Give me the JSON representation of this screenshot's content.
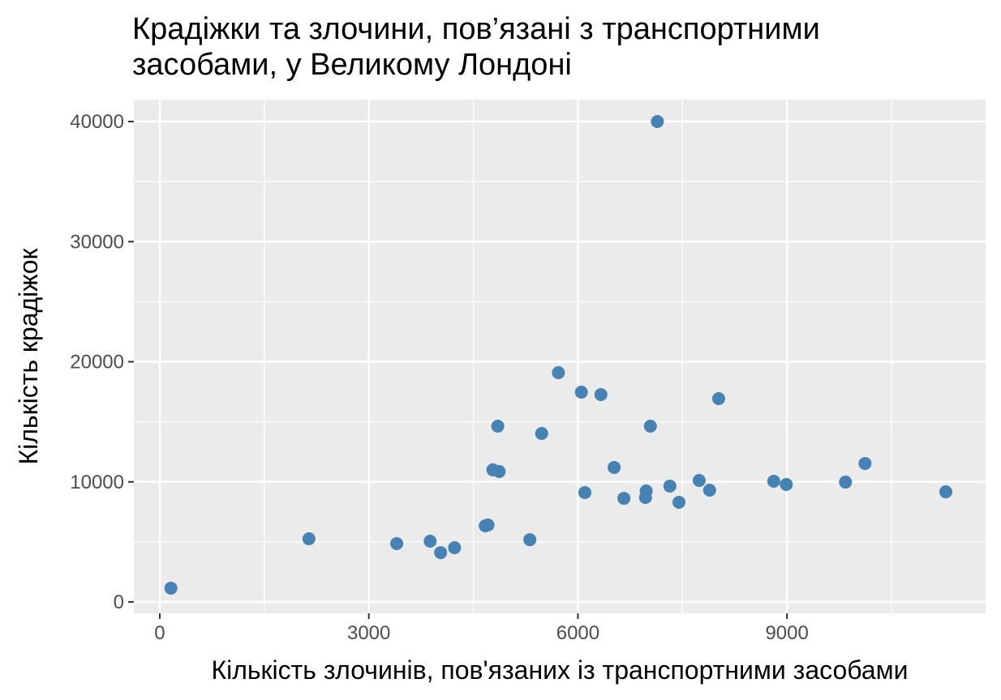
{
  "chart_data": {
    "type": "scatter",
    "title": "Крадіжки та злочини, пов’язані з транспортними засобами, у Великому Лондоні",
    "x_label": "Кількість злочинів, пов'язаних із транспортними засобами",
    "y_label": "Кількість крадіжок",
    "color": "#4682b4",
    "xlim": [
      -372,
      11850
    ],
    "ylim": [
      -944,
      41822
    ],
    "xticks": [
      0,
      3000,
      6000,
      9000
    ],
    "yticks": [
      0,
      10000,
      20000,
      30000,
      40000
    ],
    "x_minor_ticks": [
      1500,
      4500,
      7500,
      10500
    ],
    "y_minor_ticks": [
      5000,
      15000,
      25000,
      35000
    ],
    "grid": true,
    "x": [
      160,
      2140,
      3400,
      3880,
      4030,
      4230,
      4670,
      4710,
      5310,
      4780,
      4870,
      4850,
      5480,
      5720,
      6050,
      6330,
      6100,
      6520,
      6660,
      7140,
      7040,
      6980,
      6970,
      7320,
      7450,
      7740,
      7890,
      8020,
      8810,
      8990,
      9840,
      10120,
      11280
    ],
    "values": [
      1150,
      5260,
      4860,
      5060,
      4110,
      4520,
      6340,
      6410,
      5190,
      11000,
      10860,
      14640,
      14030,
      19090,
      17470,
      17270,
      9110,
      11200,
      8630,
      40000,
      14640,
      9240,
      8700,
      9650,
      8300,
      10120,
      9310,
      16930,
      10050,
      9780,
      9980,
      11530,
      9170
    ]
  }
}
